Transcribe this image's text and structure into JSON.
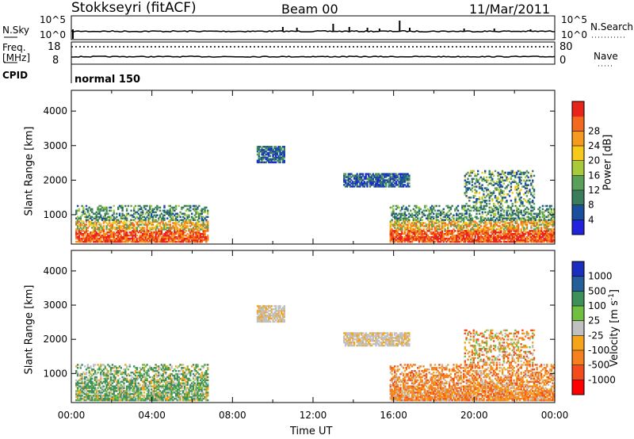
{
  "header": {
    "station": "Stokkseyri (fitACF)",
    "beam": "Beam 00",
    "date": "11/Mar/2011"
  },
  "nsky": {
    "label": "N.Sky",
    "ytick_top": "10^5",
    "ytick_bottom": "10^0",
    "right_label": "N.Search",
    "right_tick_top": "10^5",
    "right_tick_bottom": "10^0"
  },
  "freq": {
    "label_line1": "Freq.",
    "label_line2": "[MHz]",
    "ytick_top": "18",
    "ytick_bottom": "8",
    "right_label": "Nave",
    "right_tick_top": "80",
    "right_tick_bottom": "0"
  },
  "cpid": {
    "label": "CPID",
    "program": "normal 150"
  },
  "colors": {
    "power": [
      "#2222dd",
      "#1a4f9e",
      "#3a7d5c",
      "#5aa05a",
      "#a7c93a",
      "#f7c91a",
      "#f59a1e",
      "#f36a1e",
      "#e8251c"
    ],
    "velocity": [
      "#ff0000",
      "#f34b1c",
      "#f5801e",
      "#f6a51b",
      "#c0c0c0",
      "#6fc040",
      "#3f8f5a",
      "#255f99",
      "#1c2ec0"
    ]
  },
  "chart_data": [
    {
      "type": "heatmap",
      "panel": "power",
      "xlabel": "",
      "ylabel": "Slant Range [km]",
      "xlim_hours": [
        0,
        24
      ],
      "ylim_km": [
        150,
        4600
      ],
      "yticks": [
        "1000",
        "2000",
        "3000",
        "4000"
      ],
      "colorbar_label": "Power [dB]",
      "colorbar_ticks": [
        "4",
        "8",
        "12",
        "16",
        "20",
        "24",
        "28"
      ],
      "echo_regions": [
        {
          "t_start": 0.2,
          "t_end": 6.8,
          "range_km": [
            200,
            1300
          ],
          "level": "high"
        },
        {
          "t_start": 9.2,
          "t_end": 10.6,
          "range_km": [
            2500,
            3000
          ],
          "level": "low"
        },
        {
          "t_start": 13.5,
          "t_end": 16.8,
          "range_km": [
            1800,
            2200
          ],
          "level": "low"
        },
        {
          "t_start": 15.8,
          "t_end": 24.0,
          "range_km": [
            200,
            1300
          ],
          "level": "high"
        },
        {
          "t_start": 19.5,
          "t_end": 23.0,
          "range_km": [
            1300,
            2300
          ],
          "level": "mixed"
        }
      ]
    },
    {
      "type": "heatmap",
      "panel": "velocity",
      "xlabel": "Time UT",
      "ylabel": "Slant Range [km]",
      "xlim_hours": [
        0,
        24
      ],
      "ylim_km": [
        150,
        4600
      ],
      "xticks": [
        "00:00",
        "04:00",
        "08:00",
        "12:00",
        "16:00",
        "20:00",
        "00:00"
      ],
      "yticks": [
        "1000",
        "2000",
        "3000",
        "4000"
      ],
      "colorbar_label": "Velocity [m s^-1]",
      "colorbar_ticks": [
        "-1000",
        "-500",
        "-100",
        "-25",
        "25",
        "100",
        "500",
        "1000"
      ],
      "echo_regions": [
        {
          "t_start": 0.2,
          "t_end": 6.8,
          "range_km": [
            200,
            1300
          ],
          "level": "positive"
        },
        {
          "t_start": 9.2,
          "t_end": 10.6,
          "range_km": [
            2500,
            3000
          ],
          "level": "gray"
        },
        {
          "t_start": 13.5,
          "t_end": 16.8,
          "range_km": [
            1800,
            2200
          ],
          "level": "gray"
        },
        {
          "t_start": 15.8,
          "t_end": 24.0,
          "range_km": [
            200,
            1300
          ],
          "level": "negative"
        },
        {
          "t_start": 19.5,
          "t_end": 23.0,
          "range_km": [
            1300,
            2300
          ],
          "level": "mixed"
        }
      ]
    }
  ]
}
